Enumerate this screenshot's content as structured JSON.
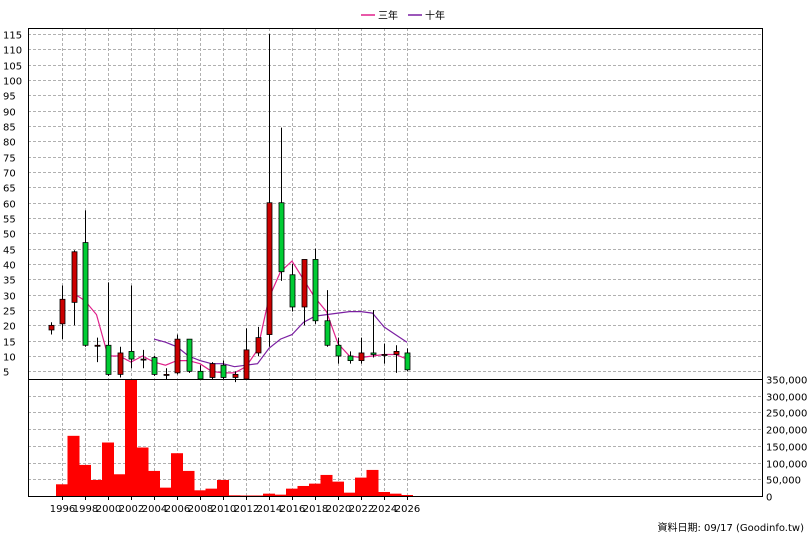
{
  "legend": {
    "items": [
      {
        "label": "三年",
        "color": "#e0218a"
      },
      {
        "label": "十年",
        "color": "#7b1fa2"
      }
    ]
  },
  "source_note": "資料日期: 09/17  (Goodinfo.tw)",
  "chart_data": [
    {
      "type": "candlestick",
      "x_ticks": [
        "1996",
        "1998",
        "2000",
        "2002",
        "2004",
        "2006",
        "2008",
        "2010",
        "2012",
        "2014",
        "2016",
        "2018",
        "2020",
        "2022",
        "2024",
        "2026"
      ],
      "y_ticks": [
        5,
        10,
        15,
        20,
        25,
        30,
        35,
        40,
        45,
        50,
        55,
        60,
        65,
        70,
        75,
        80,
        85,
        90,
        95,
        100,
        105,
        110,
        115
      ],
      "ylim": [
        2.5,
        117
      ],
      "grid": true,
      "up_color": "#cc0000",
      "down_color": "#00cc33",
      "candles": [
        {
          "year": 1995,
          "open": 18.5,
          "close": 20,
          "high": 21,
          "low": 17
        },
        {
          "year": 1996,
          "open": 20.5,
          "close": 28.5,
          "high": 33,
          "low": 15.5
        },
        {
          "year": 1997,
          "open": 27.5,
          "close": 44,
          "high": 44.5,
          "low": 20
        },
        {
          "year": 1998,
          "open": 47,
          "close": 13.5,
          "high": 57.5,
          "low": 13
        },
        {
          "year": 1999,
          "open": 13.5,
          "close": 13.5,
          "high": 16,
          "low": 8
        },
        {
          "year": 2000,
          "open": 13.5,
          "close": 4,
          "high": 34,
          "low": 3.5
        },
        {
          "year": 2001,
          "open": 4,
          "close": 11,
          "high": 13,
          "low": 3
        },
        {
          "year": 2002,
          "open": 11.5,
          "close": 9,
          "high": 33,
          "low": 6
        },
        {
          "year": 2003,
          "open": 9,
          "close": 9,
          "high": 12,
          "low": 6
        },
        {
          "year": 2004,
          "open": 9.5,
          "close": 4,
          "high": 10,
          "low": 3.5
        },
        {
          "year": 2005,
          "open": 4,
          "close": 4,
          "high": 6,
          "low": 2.5
        },
        {
          "year": 2006,
          "open": 4.5,
          "close": 15.5,
          "high": 17,
          "low": 4
        },
        {
          "year": 2007,
          "open": 15.5,
          "close": 5,
          "high": 15.5,
          "low": 4.5
        },
        {
          "year": 2008,
          "open": 5,
          "close": 2.5,
          "high": 7,
          "low": 2.5
        },
        {
          "year": 2009,
          "open": 3,
          "close": 7.5,
          "high": 8,
          "low": 2.5
        },
        {
          "year": 2010,
          "open": 7,
          "close": 3,
          "high": 8.5,
          "low": 2.5
        },
        {
          "year": 2011,
          "open": 3,
          "close": 4,
          "high": 5,
          "low": 1.5
        },
        {
          "year": 2012,
          "open": 2.5,
          "close": 12,
          "high": 19,
          "low": 2.5
        },
        {
          "year": 2013,
          "open": 11,
          "close": 16,
          "high": 19.5,
          "low": 10
        },
        {
          "year": 2014,
          "open": 17,
          "close": 60,
          "high": 115,
          "low": 13
        },
        {
          "year": 2015,
          "open": 60,
          "close": 37.5,
          "high": 84.5,
          "low": 34.5
        },
        {
          "year": 2016,
          "open": 36.5,
          "close": 26,
          "high": 40,
          "low": 24.5
        },
        {
          "year": 2017,
          "open": 26,
          "close": 41.5,
          "high": 41.5,
          "low": 20
        },
        {
          "year": 2018,
          "open": 41.5,
          "close": 21.5,
          "high": 45,
          "low": 20.5
        },
        {
          "year": 2019,
          "open": 21.5,
          "close": 13.5,
          "high": 31.5,
          "low": 13
        },
        {
          "year": 2020,
          "open": 13.5,
          "close": 10,
          "high": 16,
          "low": 7.5
        },
        {
          "year": 2021,
          "open": 10,
          "close": 8.5,
          "high": 11.5,
          "low": 7.5
        },
        {
          "year": 2022,
          "open": 8.5,
          "close": 11,
          "high": 16,
          "low": 7.5
        },
        {
          "year": 2023,
          "open": 11,
          "close": 10.5,
          "high": 25,
          "low": 9.5
        },
        {
          "year": 2024,
          "open": 10.5,
          "close": 10.5,
          "high": 14,
          "low": 7.5
        },
        {
          "year": 2025,
          "open": 10.5,
          "close": 11.5,
          "high": 13.5,
          "low": 4.5
        },
        {
          "year": 2026,
          "open": 11,
          "close": 5.5,
          "high": 12.5,
          "low": 5
        }
      ],
      "series": [
        {
          "name": "三年",
          "color": "#e0218a",
          "points": [
            [
              1997,
              30.5
            ],
            [
              1998,
              28
            ],
            [
              1999,
              23.5
            ],
            [
              2000,
              10
            ],
            [
              2001,
              10
            ],
            [
              2002,
              8
            ],
            [
              2003,
              10
            ],
            [
              2004,
              8
            ],
            [
              2005,
              7
            ],
            [
              2006,
              8.5
            ],
            [
              2007,
              8.5
            ],
            [
              2008,
              7.5
            ],
            [
              2009,
              5
            ],
            [
              2010,
              4.5
            ],
            [
              2011,
              4.5
            ],
            [
              2012,
              6.5
            ],
            [
              2013,
              12
            ],
            [
              2014,
              29
            ],
            [
              2015,
              37.5
            ],
            [
              2016,
              41
            ],
            [
              2017,
              35
            ],
            [
              2018,
              29
            ],
            [
              2019,
              24.5
            ],
            [
              2020,
              14
            ],
            [
              2021,
              10
            ],
            [
              2022,
              9.5
            ],
            [
              2023,
              10
            ],
            [
              2024,
              10.5
            ],
            [
              2025,
              10.5
            ],
            [
              2026,
              9
            ]
          ]
        },
        {
          "name": "十年",
          "color": "#7b1fa2",
          "points": [
            [
              2004,
              15.5
            ],
            [
              2005,
              14.5
            ],
            [
              2006,
              13
            ],
            [
              2007,
              10
            ],
            [
              2008,
              8.5
            ],
            [
              2009,
              7.5
            ],
            [
              2010,
              7.5
            ],
            [
              2011,
              6.5
            ],
            [
              2012,
              7
            ],
            [
              2013,
              7.5
            ],
            [
              2014,
              12.5
            ],
            [
              2015,
              15.5
            ],
            [
              2016,
              17
            ],
            [
              2017,
              21
            ],
            [
              2018,
              23
            ],
            [
              2019,
              23.5
            ],
            [
              2020,
              24
            ],
            [
              2021,
              24.5
            ],
            [
              2022,
              24.5
            ],
            [
              2023,
              24
            ],
            [
              2024,
              19.5
            ],
            [
              2025,
              17
            ],
            [
              2026,
              14.5
            ]
          ]
        }
      ]
    },
    {
      "type": "bar",
      "y_ticks": [
        "0",
        "50,000",
        "100,000",
        "150,000",
        "200,000",
        "250,000",
        "300,000",
        "350,000"
      ],
      "ylim": [
        0,
        350000
      ],
      "grid": true,
      "color": "#ff0000",
      "bars": [
        {
          "year": 1996,
          "value": 35000
        },
        {
          "year": 1997,
          "value": 180000
        },
        {
          "year": 1998,
          "value": 93000
        },
        {
          "year": 1999,
          "value": 48000
        },
        {
          "year": 2000,
          "value": 160000
        },
        {
          "year": 2001,
          "value": 65000
        },
        {
          "year": 2002,
          "value": 350000
        },
        {
          "year": 2003,
          "value": 145000
        },
        {
          "year": 2004,
          "value": 75000
        },
        {
          "year": 2005,
          "value": 25000
        },
        {
          "year": 2006,
          "value": 128000
        },
        {
          "year": 2007,
          "value": 75000
        },
        {
          "year": 2008,
          "value": 17000
        },
        {
          "year": 2009,
          "value": 22000
        },
        {
          "year": 2010,
          "value": 48000
        },
        {
          "year": 2011,
          "value": 2000
        },
        {
          "year": 2012,
          "value": 1500
        },
        {
          "year": 2013,
          "value": 1500
        },
        {
          "year": 2014,
          "value": 7000
        },
        {
          "year": 2015,
          "value": 4000
        },
        {
          "year": 2016,
          "value": 22000
        },
        {
          "year": 2017,
          "value": 30000
        },
        {
          "year": 2018,
          "value": 37000
        },
        {
          "year": 2019,
          "value": 63000
        },
        {
          "year": 2020,
          "value": 43000
        },
        {
          "year": 2021,
          "value": 10000
        },
        {
          "year": 2022,
          "value": 55000
        },
        {
          "year": 2023,
          "value": 78000
        },
        {
          "year": 2024,
          "value": 12000
        },
        {
          "year": 2025,
          "value": 7000
        },
        {
          "year": 2026,
          "value": 3000
        }
      ]
    }
  ]
}
